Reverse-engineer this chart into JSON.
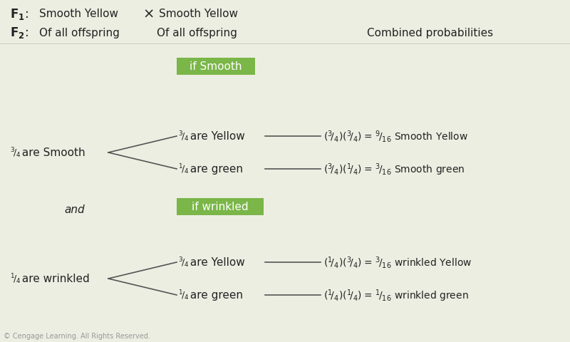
{
  "bg_color": "#edeee2",
  "green_box_color": "#7ab648",
  "green_box_text_color": "#ffffff",
  "smooth_box_text": "if Smooth",
  "wrinkled_box_text": "if wrinkled",
  "and_text": "and",
  "line_color": "#555555",
  "text_color": "#222222",
  "copyright": "© Cengage Learning. All Rights Reserved."
}
